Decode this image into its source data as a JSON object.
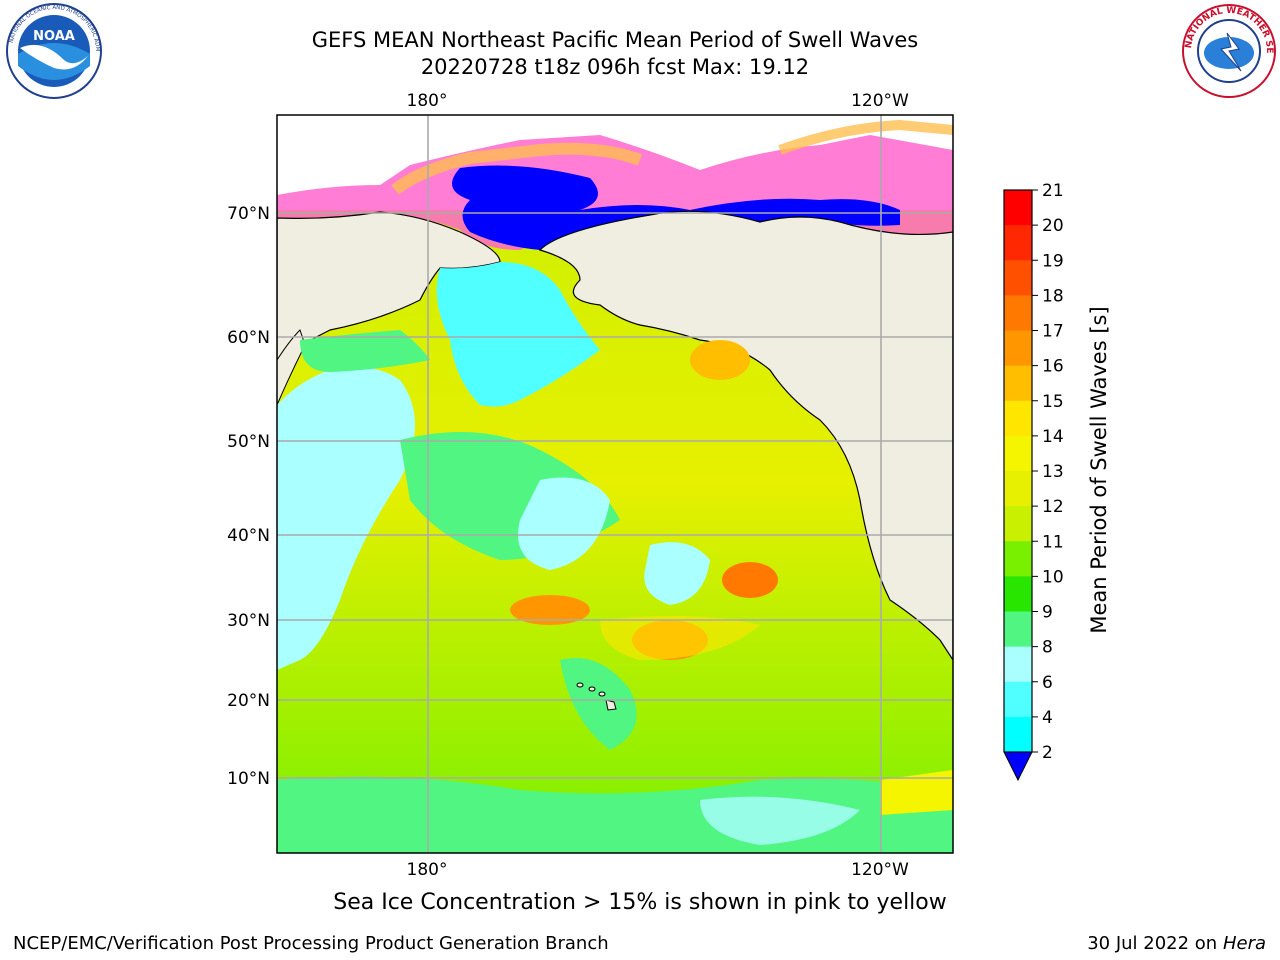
{
  "title": {
    "line1": "GEFS MEAN Northeast Pacific Mean Period of Swell Waves",
    "line2": "20220728 t18z 096h fcst   Max: 19.12"
  },
  "map": {
    "lon_labels": [
      "180°",
      "120°W"
    ],
    "lat_labels": [
      "70°N",
      "60°N",
      "50°N",
      "40°N",
      "30°N",
      "20°N",
      "10°N"
    ]
  },
  "colorbar": {
    "label": "Mean Period of Swell Waves [s]",
    "levels": [
      "21",
      "20",
      "19",
      "18",
      "17",
      "16",
      "15",
      "14",
      "13",
      "12",
      "11",
      "10",
      "9",
      "8",
      "6",
      "4",
      "2"
    ],
    "colors": [
      "#ff0000",
      "#ff2800",
      "#ff5000",
      "#ff7800",
      "#ff9600",
      "#ffbe00",
      "#ffe600",
      "#f5f500",
      "#e6f000",
      "#c8f000",
      "#78f000",
      "#28e600",
      "#50f582",
      "#aaffff",
      "#50ffff",
      "#00ffff",
      "#00c8ff",
      "#0078ff",
      "#0000ff"
    ]
  },
  "sea_ice_note": "Sea Ice Concentration > 15% is shown in pink to yellow",
  "footer": {
    "left": "NCEP/EMC/Verification Post Processing Product Generation Branch",
    "date": "30 Jul 2022 on ",
    "machine": "Hera"
  },
  "logos": {
    "noaa_text": "NOAA",
    "nws_text": "NATIONAL WEATHER SERVICE"
  }
}
